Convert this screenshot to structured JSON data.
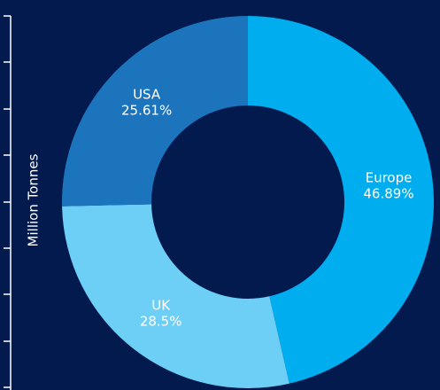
{
  "chart_data": {
    "type": "donut",
    "y_label": "Million Tonnes",
    "categories": [
      "Europe",
      "UK",
      "USA"
    ],
    "values": [
      46.89,
      28.5,
      25.61
    ],
    "value_labels": [
      "46.89%",
      "28.5%",
      "25.61%"
    ],
    "colors": [
      "#00aeef",
      "#6dcff6",
      "#1c75bc"
    ]
  }
}
